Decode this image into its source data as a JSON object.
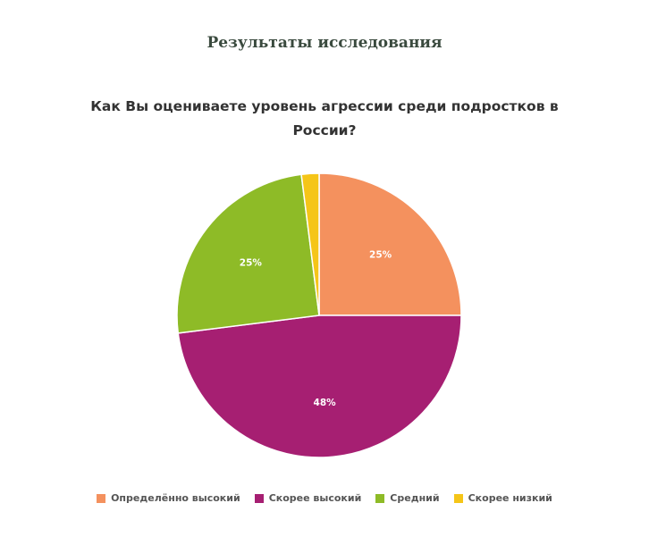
{
  "header": {
    "title": "Результаты исследования"
  },
  "chart_data": {
    "type": "pie",
    "title": "Как Вы оцениваете уровень агрессии среди подростков в России?",
    "legend_position": "bottom",
    "categories": [
      "Определённо высокий",
      "Скорее высокий",
      "Средний",
      "Скорее низкий"
    ],
    "values": [
      25,
      48,
      25,
      2
    ],
    "data_labels": [
      "25%",
      "48%",
      "25%",
      ""
    ],
    "colors": [
      "#f4915e",
      "#a61f72",
      "#8ebb27",
      "#f5c518"
    ]
  }
}
